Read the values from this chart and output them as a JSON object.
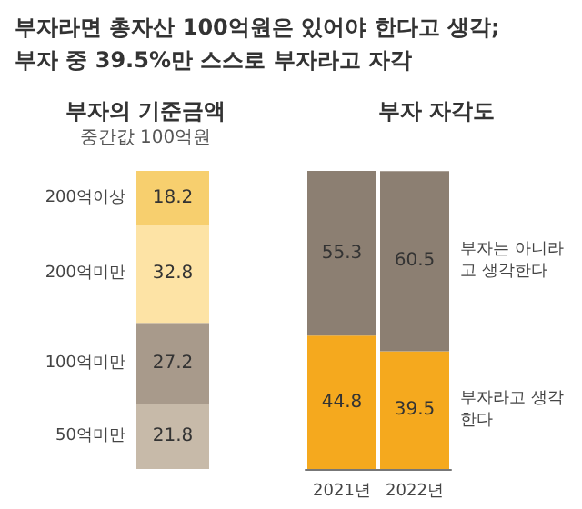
{
  "chart_data": [
    {
      "type": "bar",
      "title": "부자의 기준금액",
      "subtitle": "중간값 100억원",
      "annotations": [
        "부자라면 총자산 100억원은 있어야 한다고 생각;",
        "부자 중 39.5%만 스스로 부자라고 자각"
      ],
      "categories": [
        null
      ],
      "stacked": true,
      "data_labels": true,
      "tick_labels": false,
      "series": [
        {
          "name": "50억미만",
          "color": "#c7baa9",
          "values": [
            21.8
          ]
        },
        {
          "name": "100억미만",
          "color": "#a89a8b",
          "values": [
            27.2
          ]
        },
        {
          "name": "200억미만",
          "color": "#fde3a5",
          "values": [
            32.8
          ]
        },
        {
          "name": "200억이상",
          "color": "#f7cf6e",
          "values": [
            18.2
          ]
        }
      ]
    },
    {
      "type": "bar",
      "title": "부자 자각도",
      "categories": [
        "2021년",
        "2022년"
      ],
      "stacked": true,
      "data_labels": true,
      "tick_labels": "x",
      "series": [
        {
          "name": "부자라고 생각한다",
          "color": "#f5a91e",
          "values": [
            44.8,
            39.5
          ]
        },
        {
          "name": "부자는 아니라고 생각한다",
          "color": "#8c7f72",
          "values": [
            55.3,
            60.5
          ]
        }
      ]
    }
  ]
}
